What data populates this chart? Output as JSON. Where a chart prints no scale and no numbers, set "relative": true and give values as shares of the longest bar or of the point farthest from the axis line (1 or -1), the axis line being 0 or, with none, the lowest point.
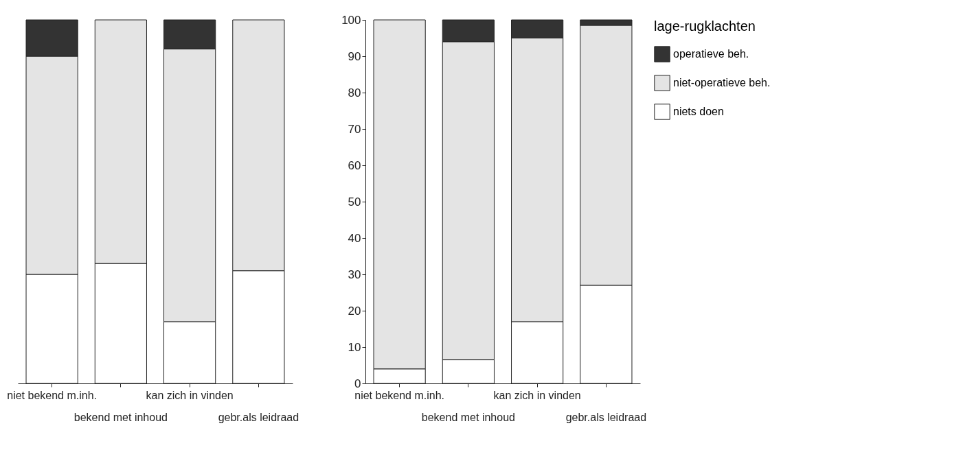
{
  "chart_data": [
    {
      "type": "bar",
      "stacked": true,
      "relative": true,
      "categories": [
        "niet bekend m.inh.",
        "bekend met inhoud",
        "kan zich in vinden",
        "gebr.als leidraad"
      ],
      "series": [
        {
          "color": "#ffffff",
          "values": [
            0.3,
            0.33,
            0.17,
            0.31
          ]
        },
        {
          "color": "#e4e4e4",
          "values": [
            0.6,
            0.67,
            0.75,
            0.69
          ]
        },
        {
          "color": "#333333",
          "values": [
            0.1,
            0,
            0.08,
            0
          ]
        }
      ]
    },
    {
      "type": "bar",
      "stacked": true,
      "legend": "right",
      "legend_title": "lage-rugklachten",
      "categories": [
        "niet bekend m.inh.",
        "bekend met inhoud",
        "kan zich in vinden",
        "gebr.als leidraad"
      ],
      "ylim": [
        0,
        100
      ],
      "yticks": [
        0,
        10,
        20,
        30,
        40,
        50,
        60,
        70,
        80,
        90,
        100
      ],
      "series": [
        {
          "name": "niets doen",
          "color": "#ffffff",
          "values": [
            4,
            6.5,
            17,
            27
          ]
        },
        {
          "name": "niet-operatieve beh.",
          "color": "#e4e4e4",
          "values": [
            96,
            87.5,
            78,
            71.5
          ]
        },
        {
          "name": "operatieve beh.",
          "color": "#333333",
          "values": [
            0,
            6,
            5,
            1.5
          ]
        }
      ]
    }
  ]
}
